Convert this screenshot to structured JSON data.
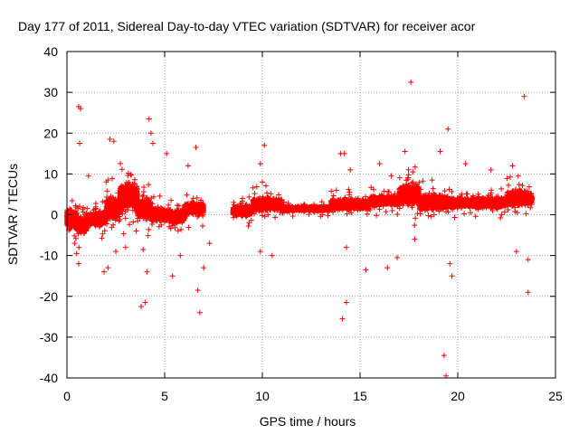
{
  "chart_data": {
    "type": "scatter",
    "title": "Day 177 of 2011, Sidereal Day-to-day VTEC variation (SDTVAR) for receiver acor",
    "xlabel": "GPS time / hours",
    "ylabel": "SDTVAR / TECUs",
    "xlim": [
      0,
      25
    ],
    "ylim": [
      -40,
      40
    ],
    "x_ticks": [
      0,
      5,
      10,
      15,
      20,
      25
    ],
    "y_ticks": [
      -40,
      -30,
      -20,
      -10,
      0,
      10,
      20,
      30,
      40
    ],
    "grid": true,
    "marker": "+",
    "color": "#ff0000",
    "series": [
      {
        "name": "SDTVAR",
        "noise_seed": 177,
        "bands": [
          {
            "x0": 0.0,
            "x1": 0.5,
            "center": -1.0,
            "spread": 3.5,
            "count": 450
          },
          {
            "x0": 0.5,
            "x1": 1.0,
            "center": -2.5,
            "spread": 3.0,
            "count": 380
          },
          {
            "x0": 1.0,
            "x1": 2.0,
            "center": -1.0,
            "spread": 2.5,
            "count": 560
          },
          {
            "x0": 2.0,
            "x1": 2.7,
            "center": 1.5,
            "spread": 4.0,
            "count": 460
          },
          {
            "x0": 2.7,
            "x1": 3.6,
            "center": 4.5,
            "spread": 5.0,
            "count": 700
          },
          {
            "x0": 3.6,
            "x1": 4.3,
            "center": 1.5,
            "spread": 3.5,
            "count": 460
          },
          {
            "x0": 4.3,
            "x1": 5.3,
            "center": 0.0,
            "spread": 2.5,
            "count": 520
          },
          {
            "x0": 5.3,
            "x1": 6.0,
            "center": -0.5,
            "spread": 2.5,
            "count": 360
          },
          {
            "x0": 6.0,
            "x1": 7.0,
            "center": 1.5,
            "spread": 2.5,
            "count": 460
          },
          {
            "x0": 8.5,
            "x1": 9.5,
            "center": 1.0,
            "spread": 2.0,
            "count": 440
          },
          {
            "x0": 9.5,
            "x1": 11.0,
            "center": 2.5,
            "spread": 2.5,
            "count": 640
          },
          {
            "x0": 11.0,
            "x1": 13.5,
            "center": 1.5,
            "spread": 1.0,
            "count": 760
          },
          {
            "x0": 13.5,
            "x1": 15.5,
            "center": 2.5,
            "spread": 2.0,
            "count": 720
          },
          {
            "x0": 15.5,
            "x1": 17.0,
            "center": 3.5,
            "spread": 2.0,
            "count": 620
          },
          {
            "x0": 17.0,
            "x1": 18.0,
            "center": 5.0,
            "spread": 4.0,
            "count": 540
          },
          {
            "x0": 18.0,
            "x1": 19.5,
            "center": 3.0,
            "spread": 3.0,
            "count": 620
          },
          {
            "x0": 19.5,
            "x1": 21.0,
            "center": 3.0,
            "spread": 2.0,
            "count": 600
          },
          {
            "x0": 21.0,
            "x1": 22.5,
            "center": 3.0,
            "spread": 2.0,
            "count": 600
          },
          {
            "x0": 22.5,
            "x1": 23.8,
            "center": 4.0,
            "spread": 3.0,
            "count": 560
          }
        ],
        "outliers": [
          [
            0.6,
            26.5
          ],
          [
            0.7,
            26
          ],
          [
            0.65,
            17.5
          ],
          [
            0.5,
            -9.5
          ],
          [
            0.6,
            -12
          ],
          [
            0.4,
            -7
          ],
          [
            1.1,
            9.5
          ],
          [
            2.2,
            18.5
          ],
          [
            2.4,
            18
          ],
          [
            1.9,
            -14
          ],
          [
            2.1,
            -13
          ],
          [
            2.5,
            -9
          ],
          [
            3.0,
            -8
          ],
          [
            3.8,
            -22.5
          ],
          [
            4.0,
            -21.5
          ],
          [
            4.1,
            -14
          ],
          [
            4.2,
            23.5
          ],
          [
            4.3,
            20
          ],
          [
            4.4,
            17.5
          ],
          [
            3.9,
            -8.5
          ],
          [
            5.1,
            15
          ],
          [
            5.4,
            -15
          ],
          [
            5.8,
            -10
          ],
          [
            6.2,
            12
          ],
          [
            6.6,
            16.5
          ],
          [
            6.7,
            -18.5
          ],
          [
            6.8,
            -24
          ],
          [
            7.0,
            -13
          ],
          [
            7.3,
            -7
          ],
          [
            9.9,
            12.5
          ],
          [
            10.1,
            17
          ],
          [
            10.0,
            8
          ],
          [
            9.9,
            -9
          ],
          [
            10.5,
            -10
          ],
          [
            14.1,
            -25.5
          ],
          [
            14.3,
            -21.5
          ],
          [
            14.2,
            15
          ],
          [
            14.0,
            15
          ],
          [
            14.5,
            11
          ],
          [
            14.3,
            -8
          ],
          [
            15.3,
            -13.5
          ],
          [
            16.0,
            12.5
          ],
          [
            16.4,
            -13
          ],
          [
            16.6,
            9.5
          ],
          [
            16.9,
            -10.5
          ],
          [
            17.6,
            32.5
          ],
          [
            17.3,
            15.5
          ],
          [
            17.7,
            10.5
          ],
          [
            17.8,
            -6
          ],
          [
            19.3,
            -34.5
          ],
          [
            19.4,
            -39.5
          ],
          [
            19.5,
            21
          ],
          [
            19.1,
            15.5
          ],
          [
            19.7,
            -15
          ],
          [
            19.6,
            -12
          ],
          [
            20.4,
            12.5
          ],
          [
            21.7,
            11
          ],
          [
            22.8,
            12
          ],
          [
            23.4,
            29
          ],
          [
            23.6,
            -19
          ],
          [
            23.6,
            -11
          ],
          [
            23.0,
            -9
          ]
        ]
      }
    ]
  }
}
